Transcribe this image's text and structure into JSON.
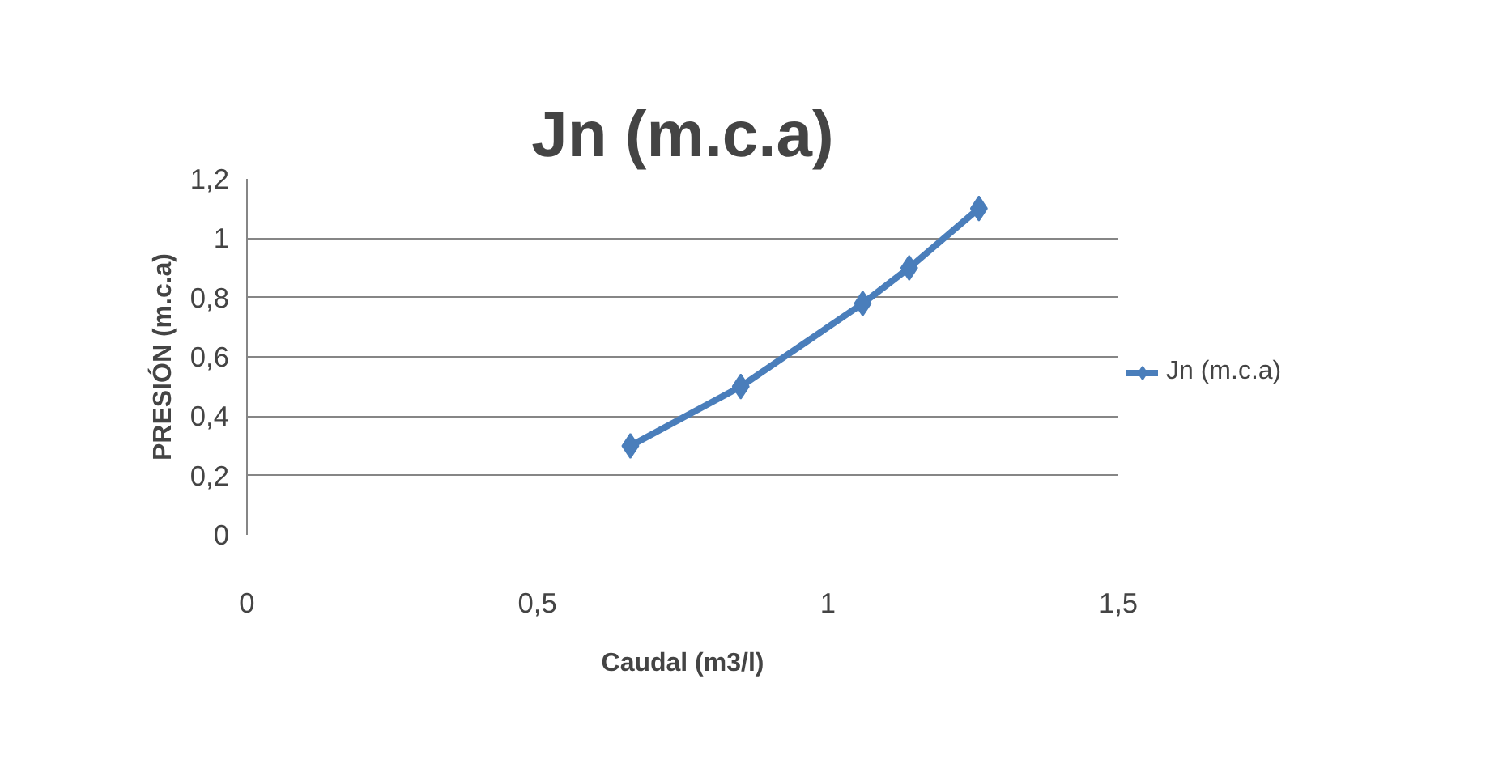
{
  "chart_data": {
    "type": "line",
    "title": "Jn (m.c.a)",
    "xlabel": "Caudal (m3/l)",
    "ylabel": "PRESIÓN (m.c.a)",
    "x": [
      0.66,
      0.85,
      1.06,
      1.14,
      1.26
    ],
    "series": [
      {
        "name": "Jn (m.c.a)",
        "color": "#4a7ebb",
        "values": [
          0.3,
          0.5,
          0.78,
          0.9,
          1.1
        ]
      }
    ],
    "xlim": [
      0,
      1.5
    ],
    "xticks": [
      0,
      {
        "value": 0.5,
        "label": "0,5"
      },
      1,
      {
        "value": 1.5,
        "label": "1,5"
      }
    ],
    "ylim": [
      0,
      1.2
    ],
    "yticks": [
      0,
      {
        "value": 0.2,
        "label": "0,2"
      },
      {
        "value": 0.4,
        "label": "0,4"
      },
      {
        "value": 0.6,
        "label": "0,6"
      },
      {
        "value": 0.8,
        "label": "0,8"
      },
      1,
      {
        "value": 1.2,
        "label": "1,2"
      }
    ],
    "grid": "y",
    "legend": "right",
    "marker": "diamond",
    "line_style": "solid"
  }
}
